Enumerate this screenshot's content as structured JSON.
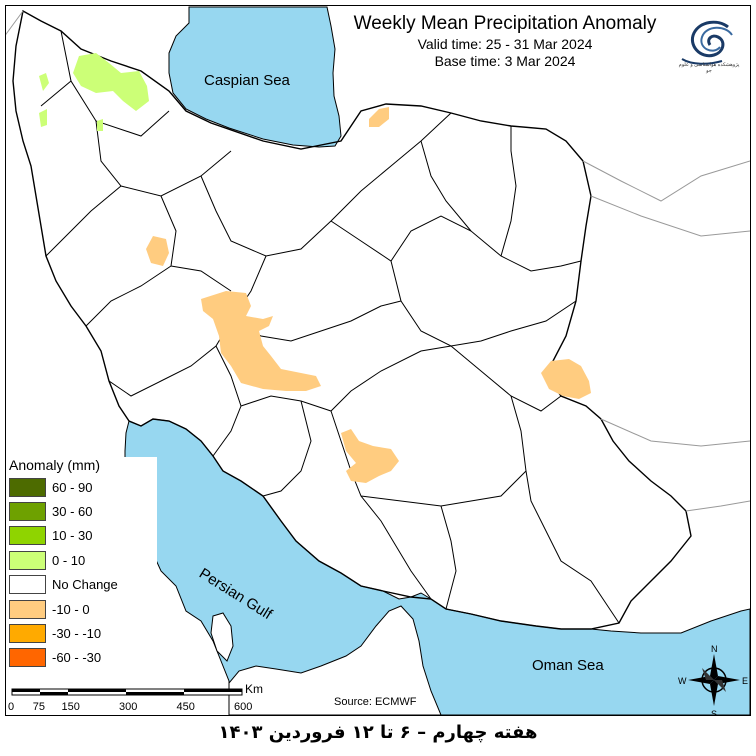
{
  "title": "Weekly Mean Precipitation Anomaly",
  "valid_time": "Valid time: 25 - 31 Mar 2024",
  "base_time": "Base time: 3 Mar 2024",
  "seas": {
    "caspian": "Caspian Sea",
    "persian_gulf": "Persian Gulf",
    "oman": "Oman Sea"
  },
  "legend": {
    "title": "Anomaly (mm)",
    "items": [
      {
        "label": "60 - 90",
        "color": "#4d6b00"
      },
      {
        "label": "30 - 60",
        "color": "#6ea100"
      },
      {
        "label": "10 - 30",
        "color": "#8fd400"
      },
      {
        "label": "0 - 10",
        "color": "#ccff77"
      },
      {
        "label": "No Change",
        "color": "#ffffff"
      },
      {
        "label": "-10 - 0",
        "color": "#ffcc80"
      },
      {
        "label": "-30 - -10",
        "color": "#ffaa00"
      },
      {
        "label": "-60 - -30",
        "color": "#ff6600"
      }
    ]
  },
  "scale": {
    "unit": "Km",
    "ticks": [
      "0",
      "75",
      "150",
      "300",
      "450",
      "600"
    ]
  },
  "source": "Source: ECMWF",
  "footer": "هفته چهارم – ۶ تا ۱۲ فروردین ۱۴۰۳",
  "logo_text": "پژوهشکده هواشناسی و علوم جو",
  "compass": {
    "n": "N",
    "s": "S",
    "e": "E",
    "w": "W"
  },
  "colors": {
    "sea": "#97d7f0",
    "land": "#ffffff",
    "border": "#000000",
    "neighbor_border": "#999999"
  }
}
